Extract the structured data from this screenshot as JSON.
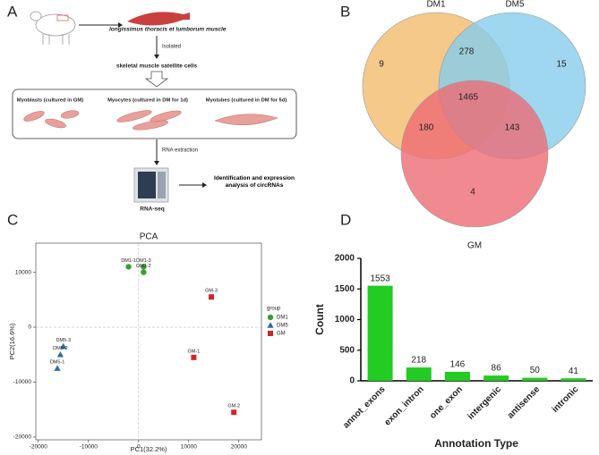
{
  "diagram": {
    "panel": "A",
    "muscle": "longissimus thoracis et lumborum muscle",
    "step1": "Isolated",
    "cells": "skeletal muscle satellite cells",
    "stages": [
      "Myoblasts (cultured in GM)",
      "Myocytes (cultured in DM for 1d)",
      "Myotubes (cultured in DM for 5d)"
    ],
    "step2": "RNA extraction",
    "instrument": "RNA-seq",
    "result": "Identification and expression analysis of circRNAs"
  },
  "chart_data": [
    {
      "type": "venn",
      "panel": "B",
      "sets": [
        {
          "name": "DM1",
          "color": "#f3bb6c"
        },
        {
          "name": "DM5",
          "color": "#86cdeb"
        },
        {
          "name": "GM",
          "color": "#ee6b76"
        }
      ],
      "values": [
        9,
        278,
        15,
        1465,
        180,
        143,
        4
      ]
    },
    {
      "type": "scatter",
      "panel": "C",
      "title": "PCA",
      "x_label": "PC1(32.2%)",
      "y_label": "PC2(16.6%)",
      "legend_title": "group",
      "xlim": [
        -20500,
        24500
      ],
      "ylim": [
        -20500,
        15300
      ],
      "xticks": [
        -20000,
        -10000,
        0,
        10000,
        20000
      ],
      "yticks": [
        -20000,
        -10000,
        0,
        10000
      ],
      "series": [
        {
          "name": "DM1",
          "color": "#3a9e35",
          "marker": "circle",
          "x": [
            -2000,
            1000,
            1000
          ],
          "values": [
            11000,
            11000,
            10000
          ],
          "point_labels": [
            "DM1-1",
            "DM1-3",
            "DM1-2"
          ]
        },
        {
          "name": "DM5",
          "color": "#2e6da4",
          "marker": "triangle",
          "x": [
            -15000,
            -15600,
            -16200
          ],
          "values": [
            -3500,
            -5000,
            -7500
          ],
          "point_labels": [
            "DM5-3",
            "DM5-2",
            "DM5-1"
          ]
        },
        {
          "name": "GM",
          "color": "#d3242b",
          "marker": "square",
          "x": [
            14500,
            11000,
            19000
          ],
          "values": [
            5500,
            -5500,
            -15500
          ],
          "point_labels": [
            "GM-3",
            "GM-1",
            "GM-2"
          ]
        }
      ]
    },
    {
      "type": "bar",
      "panel": "D",
      "x_label": "Annotation Type",
      "y_label": "Count",
      "color": "#22cc22",
      "categories": [
        "annot_exons",
        "exon_intron",
        "one_exon",
        "intergenic",
        "antisense",
        "intronic"
      ],
      "values": [
        1553,
        218,
        146,
        86,
        50,
        41
      ],
      "ylim": [
        0,
        2000
      ],
      "yticks": [
        0,
        500,
        1000,
        1500,
        2000
      ]
    }
  ]
}
